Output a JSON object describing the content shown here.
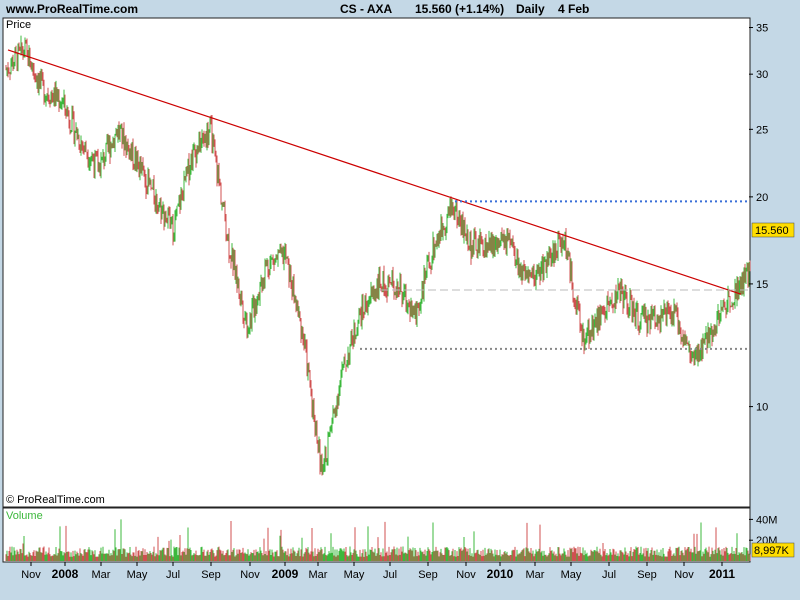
{
  "header": {
    "site": "www.ProRealTime.com",
    "symbol": "CS - AXA",
    "quote": "15.560 (+1.14%)",
    "period": "Daily",
    "date": "4 Feb"
  },
  "price_panel": {
    "label": "Price",
    "copyright": "© ProRealTime.com",
    "last_price_tag": "15.560"
  },
  "volume_panel": {
    "label": "Volume",
    "last_volume_tag": "8,997K"
  },
  "colors": {
    "up": "#3cb83c",
    "down": "#d05050",
    "trendline": "#cc0000",
    "resistance": "#3a6fd8",
    "support": "#888888",
    "tag_bg": "#ffdd00"
  },
  "chart_data": [
    {
      "type": "line",
      "title": "CS - AXA Daily",
      "ylabel": "Price",
      "scale": "log",
      "yticks": [
        10,
        15,
        20,
        25,
        30,
        35
      ],
      "ylim": [
        7.2,
        36
      ],
      "xticks": [
        "Nov",
        "2008",
        "Mar",
        "May",
        "Jul",
        "Sep",
        "Nov",
        "2009",
        "Mar",
        "May",
        "Jul",
        "Sep",
        "Nov",
        "2010",
        "Mar",
        "May",
        "Jul",
        "Sep",
        "Nov",
        "2011"
      ],
      "x": [
        "Oct 2007",
        "Nov 2007",
        "Dec 2007",
        "Jan 2008",
        "Feb 2008",
        "Mar 2008",
        "Apr 2008",
        "May 2008",
        "Jun 2008",
        "Jul 2008",
        "Aug 2008",
        "Sep 2008",
        "Oct 2008",
        "Nov 2008",
        "Dec 2008",
        "Jan 2009",
        "Feb 2009",
        "Mar 2009",
        "Apr 2009",
        "May 2009",
        "Jun 2009",
        "Jul 2009",
        "Aug 2009",
        "Sep 2009",
        "Oct 2009",
        "Nov 2009",
        "Dec 2009",
        "Jan 2010",
        "Feb 2010",
        "Mar 2010",
        "Apr 2010",
        "May 2010",
        "Jun 2010",
        "Jul 2010",
        "Aug 2010",
        "Sep 2010",
        "Oct 2010",
        "Nov 2010",
        "Dec 2010",
        "Jan 2011",
        "Feb 2011"
      ],
      "series": [
        {
          "values": [
            30.5,
            32.5,
            28.5,
            27.5,
            24,
            22,
            25,
            22.5,
            20,
            18,
            23,
            25,
            17,
            13,
            16,
            16.5,
            12.5,
            8,
            11,
            13.5,
            15,
            15,
            13.5,
            17,
            19.5,
            17,
            17,
            17.2,
            15,
            16,
            17.5,
            12.5,
            13.5,
            14.7,
            13.3,
            13.5,
            13.5,
            11.5,
            13,
            14.5,
            15.56
          ]
        }
      ],
      "annotations": [
        {
          "type": "trendline",
          "from": [
            "Oct 2007",
            32.5
          ],
          "to": [
            "Feb 2011",
            14.5
          ]
        },
        {
          "type": "horizontal",
          "value": 19.7,
          "style": "dotted-blue"
        },
        {
          "type": "horizontal",
          "value": 14.7,
          "style": "dashed-grey"
        },
        {
          "type": "horizontal",
          "value": 12.1,
          "style": "dotted-grey"
        }
      ]
    },
    {
      "type": "bar",
      "ylabel": "Volume",
      "yticks": [
        "40M",
        "20M"
      ],
      "ylim": [
        0,
        50
      ],
      "last_value": "8,997K"
    }
  ]
}
